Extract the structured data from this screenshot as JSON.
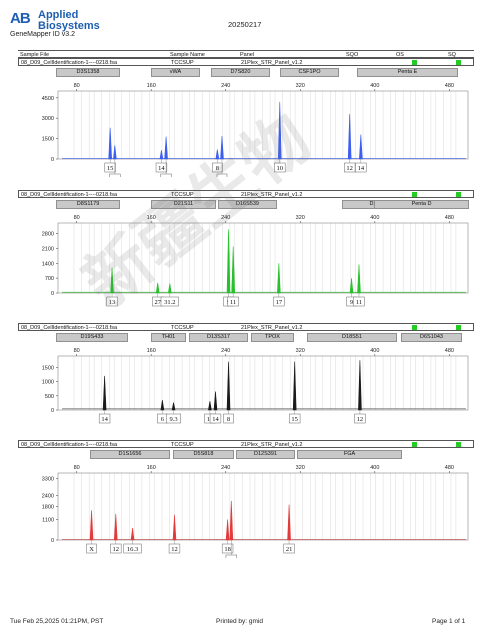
{
  "header": {
    "logo_mark": "AB",
    "brand_line1": "Applied",
    "brand_line2": "Biosystems",
    "app_version": "GeneMapper ID v3.2",
    "report_date": "20250217",
    "columns": [
      "Sample File",
      "Sample Name",
      "Panel",
      "SQO",
      "OS",
      "SQ"
    ]
  },
  "footer": {
    "timestamp": "Tue Feb 25,2025 01:21PM, PST",
    "printed_by": "Printed by: gmid",
    "page": "Page 1 of 1"
  },
  "watermark": "新疆生物",
  "colors": {
    "blue": "#3d5ff0",
    "green": "#27c12b",
    "black": "#1a1a1a",
    "red": "#e23b3b",
    "marker_fill": "#c8c8c8",
    "quality_ok": "#22cc22"
  },
  "panels": [
    {
      "sample_file": "08_D09_CellIdentification-1----0218.fsa",
      "sample_name": "TCCSUP",
      "panel": "21Plex_STR_Panel_v1.2",
      "markers": [
        "D3S1358",
        "vWA",
        "D7S820",
        "CSF1PO",
        "Penta E"
      ]
    },
    {
      "sample_file": "08_D09_CellIdentification-1----0218.fsa",
      "sample_name": "TCCSUP",
      "panel": "21Plex_STR_Panel_v1.2",
      "markers": [
        "D8S1179",
        "D21S11",
        "D16S539",
        "D2S1338",
        "Penta D"
      ]
    },
    {
      "sample_file": "08_D09_CellIdentification-1----0218.fsa",
      "sample_name": "TCCSUP",
      "panel": "21Plex_STR_Panel_v1.2",
      "markers": [
        "D19S433",
        "TH01",
        "D13S317",
        "TPOX",
        "D18S51",
        "D6S1043"
      ]
    },
    {
      "sample_file": "08_D09_CellIdentification-1----0218.fsa",
      "sample_name": "TCCSUP",
      "panel": "21Plex_STR_Panel_v1.2",
      "markers": [
        "D1S1656",
        "D5S818",
        "D12S391",
        "FGA"
      ]
    }
  ],
  "chart_data": [
    {
      "type": "line",
      "series": [
        {
          "name": "",
          "color": "#3d5ff0"
        }
      ],
      "xlim": [
        60,
        500
      ],
      "x_ticks": [
        80,
        160,
        240,
        320,
        400,
        480
      ],
      "ylim": [
        0,
        5000
      ],
      "y_ticks": [
        0,
        1500,
        3000,
        4500
      ],
      "peaks": [
        {
          "x": 116,
          "y": 2300,
          "allele": "15"
        },
        {
          "x": 121,
          "y": 1000,
          "allele": "16"
        },
        {
          "x": 171,
          "y": 650,
          "allele": "14"
        },
        {
          "x": 176,
          "y": 1650,
          "allele": "16"
        },
        {
          "x": 231,
          "y": 700,
          "allele": "8"
        },
        {
          "x": 236,
          "y": 1700,
          "allele": "9"
        },
        {
          "x": 298,
          "y": 4200,
          "allele": "10"
        },
        {
          "x": 373,
          "y": 3300,
          "allele": "12"
        },
        {
          "x": 385,
          "y": 1800,
          "allele": "14"
        }
      ]
    },
    {
      "type": "line",
      "series": [
        {
          "name": "",
          "color": "#27c12b"
        }
      ],
      "xlim": [
        60,
        500
      ],
      "x_ticks": [
        80,
        160,
        240,
        320,
        400,
        480
      ],
      "ylim": [
        0,
        3300
      ],
      "y_ticks": [
        0,
        700,
        1400,
        2100,
        2800
      ],
      "peaks": [
        {
          "x": 118,
          "y": 1200,
          "allele": "13"
        },
        {
          "x": 167,
          "y": 480,
          "allele": "27"
        },
        {
          "x": 180,
          "y": 450,
          "allele": "31.2"
        },
        {
          "x": 243,
          "y": 3000,
          "allele": "9"
        },
        {
          "x": 248,
          "y": 2200,
          "allele": "11"
        },
        {
          "x": 297,
          "y": 1400,
          "allele": "17"
        },
        {
          "x": 375,
          "y": 700,
          "allele": "9"
        },
        {
          "x": 383,
          "y": 1350,
          "allele": "11"
        }
      ]
    },
    {
      "type": "line",
      "series": [
        {
          "name": "",
          "color": "#1a1a1a"
        }
      ],
      "xlim": [
        60,
        500
      ],
      "x_ticks": [
        80,
        160,
        240,
        320,
        400,
        480
      ],
      "ylim": [
        0,
        1900
      ],
      "y_ticks": [
        0,
        500,
        1000,
        1500
      ],
      "peaks": [
        {
          "x": 110,
          "y": 1200,
          "allele": "14"
        },
        {
          "x": 172,
          "y": 350,
          "allele": "6"
        },
        {
          "x": 184,
          "y": 260,
          "allele": "9.3"
        },
        {
          "x": 223,
          "y": 310,
          "allele": "11"
        },
        {
          "x": 229,
          "y": 650,
          "allele": "14"
        },
        {
          "x": 243,
          "y": 1700,
          "allele": "8"
        },
        {
          "x": 314,
          "y": 1700,
          "allele": "15"
        },
        {
          "x": 384,
          "y": 1750,
          "allele": "12"
        }
      ]
    },
    {
      "type": "line",
      "series": [
        {
          "name": "",
          "color": "#e23b3b"
        }
      ],
      "xlim": [
        60,
        500
      ],
      "x_ticks": [
        80,
        160,
        240,
        320,
        400,
        480
      ],
      "ylim": [
        0,
        3600
      ],
      "y_ticks": [
        0,
        1100,
        1800,
        2400,
        3300
      ],
      "peaks": [
        {
          "x": 96,
          "y": 1600,
          "allele": "X"
        },
        {
          "x": 122,
          "y": 1400,
          "allele": "12"
        },
        {
          "x": 140,
          "y": 650,
          "allele": "16.3"
        },
        {
          "x": 185,
          "y": 1350,
          "allele": "12"
        },
        {
          "x": 242,
          "y": 1100,
          "allele": "18"
        },
        {
          "x": 246,
          "y": 2100,
          "allele": "20"
        },
        {
          "x": 308,
          "y": 1900,
          "allele": "21"
        }
      ]
    }
  ]
}
